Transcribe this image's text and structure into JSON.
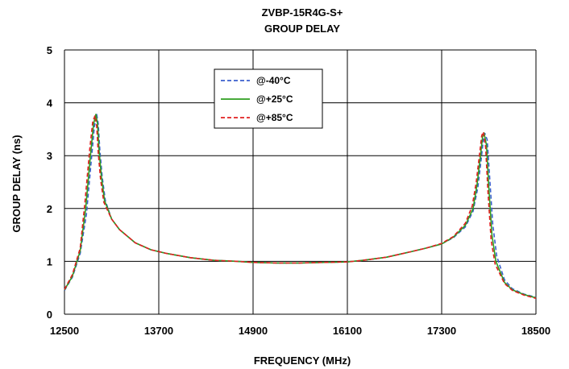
{
  "chart_data": {
    "type": "line",
    "title": "ZVBP-15R4G-S+",
    "subtitle": "GROUP DELAY",
    "xlabel": "FREQUENCY (MHz)",
    "ylabel": "GROUP DELAY (ns)",
    "xlim": [
      12500,
      18500
    ],
    "ylim": [
      0,
      5
    ],
    "xticks": [
      "12500",
      "13700",
      "14900",
      "16100",
      "17300",
      "18500"
    ],
    "yticks": [
      "0",
      "1",
      "2",
      "3",
      "4",
      "5"
    ],
    "grid": true,
    "legend_position": "top-center",
    "series": [
      {
        "name": "@-40°C",
        "color": "#3a5fcd",
        "dash": "dashed",
        "x": [
          12500,
          12600,
          12700,
          12780,
          12840,
          12880,
          12910,
          12930,
          12950,
          12980,
          13020,
          13100,
          13200,
          13400,
          13600,
          13800,
          14100,
          14400,
          14700,
          14900,
          15200,
          15500,
          15800,
          16100,
          16300,
          16600,
          16900,
          17100,
          17300,
          17450,
          17600,
          17700,
          17760,
          17800,
          17830,
          17850,
          17880,
          17910,
          17950,
          18000,
          18100,
          18200,
          18350,
          18500
        ],
        "y": [
          0.45,
          0.7,
          1.15,
          1.9,
          2.9,
          3.55,
          3.78,
          3.6,
          3.1,
          2.6,
          2.15,
          1.8,
          1.6,
          1.35,
          1.22,
          1.15,
          1.07,
          1.02,
          1.0,
          0.98,
          0.97,
          0.97,
          0.98,
          0.99,
          1.02,
          1.08,
          1.18,
          1.25,
          1.33,
          1.45,
          1.65,
          1.95,
          2.4,
          2.9,
          3.3,
          3.42,
          3.3,
          2.6,
          1.7,
          1.1,
          0.65,
          0.48,
          0.38,
          0.32
        ]
      },
      {
        "name": "@+25°C",
        "color": "#2e9e1f",
        "dash": "solid",
        "x": [
          12500,
          12600,
          12700,
          12770,
          12830,
          12870,
          12900,
          12920,
          12940,
          12970,
          13010,
          13100,
          13200,
          13400,
          13600,
          13800,
          14100,
          14400,
          14700,
          14900,
          15200,
          15500,
          15800,
          16100,
          16300,
          16600,
          16900,
          17100,
          17300,
          17450,
          17600,
          17700,
          17750,
          17790,
          17820,
          17840,
          17870,
          17900,
          17940,
          17990,
          18100,
          18200,
          18350,
          18500
        ],
        "y": [
          0.46,
          0.72,
          1.2,
          2.0,
          3.0,
          3.6,
          3.78,
          3.6,
          3.1,
          2.6,
          2.15,
          1.8,
          1.6,
          1.35,
          1.22,
          1.15,
          1.07,
          1.02,
          1.0,
          0.98,
          0.97,
          0.97,
          0.98,
          0.99,
          1.02,
          1.08,
          1.18,
          1.25,
          1.33,
          1.46,
          1.68,
          2.0,
          2.45,
          2.95,
          3.35,
          3.43,
          3.2,
          2.4,
          1.5,
          1.0,
          0.6,
          0.46,
          0.37,
          0.31
        ]
      },
      {
        "name": "@+85°C",
        "color": "#e02020",
        "dash": "dashed",
        "x": [
          12500,
          12600,
          12700,
          12760,
          12820,
          12860,
          12890,
          12910,
          12930,
          12960,
          13000,
          13100,
          13200,
          13400,
          13600,
          13800,
          14100,
          14400,
          14700,
          14900,
          15200,
          15500,
          15800,
          16100,
          16300,
          16600,
          16900,
          17100,
          17300,
          17450,
          17600,
          17690,
          17740,
          17780,
          17810,
          17830,
          17860,
          17890,
          17930,
          17980,
          18100,
          18200,
          18350,
          18500
        ],
        "y": [
          0.47,
          0.75,
          1.25,
          2.1,
          3.1,
          3.65,
          3.76,
          3.55,
          3.05,
          2.55,
          2.12,
          1.8,
          1.6,
          1.35,
          1.22,
          1.15,
          1.07,
          1.02,
          1.0,
          0.98,
          0.97,
          0.97,
          0.98,
          0.99,
          1.02,
          1.08,
          1.18,
          1.25,
          1.34,
          1.47,
          1.72,
          2.05,
          2.5,
          3.0,
          3.38,
          3.45,
          3.15,
          2.3,
          1.4,
          0.95,
          0.58,
          0.45,
          0.36,
          0.3
        ]
      }
    ]
  }
}
